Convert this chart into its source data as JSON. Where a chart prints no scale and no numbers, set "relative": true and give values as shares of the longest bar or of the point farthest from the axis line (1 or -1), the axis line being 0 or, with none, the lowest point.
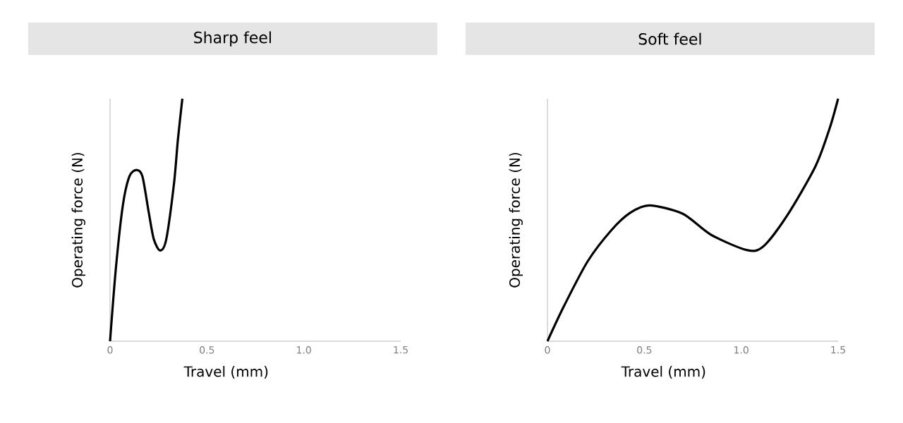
{
  "chart_data": [
    {
      "type": "line",
      "title": "Sharp feel",
      "xlabel": "Travel (mm)",
      "ylabel": "Operating force (N)",
      "relative": true,
      "color": "#000000",
      "xlim": [
        0,
        1.5
      ],
      "xticks": [
        0,
        0.5,
        {
          "value": 1,
          "label": "1.0"
        },
        1.5
      ],
      "x": [
        0,
        0.03,
        0.066,
        0.1,
        0.137,
        0.167,
        0.2,
        0.226,
        0.259,
        0.29,
        0.33,
        0.35,
        0.373
      ],
      "values": [
        0,
        0.3,
        0.56,
        0.68,
        0.706,
        0.68,
        0.53,
        0.42,
        0.374,
        0.42,
        0.65,
        0.83,
        1
      ]
    },
    {
      "type": "line",
      "title": "Soft feel",
      "xlabel": "Travel (mm)",
      "ylabel": "Operating force (N)",
      "relative": true,
      "color": "#000000",
      "xlim": [
        0,
        1.5
      ],
      "xticks": [
        0,
        0.5,
        {
          "value": 1,
          "label": "1.0"
        },
        1.5
      ],
      "x": [
        0,
        0.086,
        0.208,
        0.33,
        0.428,
        0.526,
        0.697,
        0.844,
        1.028,
        1.113,
        1.236,
        1.383,
        1.456,
        1.5
      ],
      "values": [
        0,
        0.146,
        0.33,
        0.458,
        0.53,
        0.56,
        0.526,
        0.439,
        0.376,
        0.39,
        0.517,
        0.721,
        0.877,
        1
      ]
    }
  ]
}
